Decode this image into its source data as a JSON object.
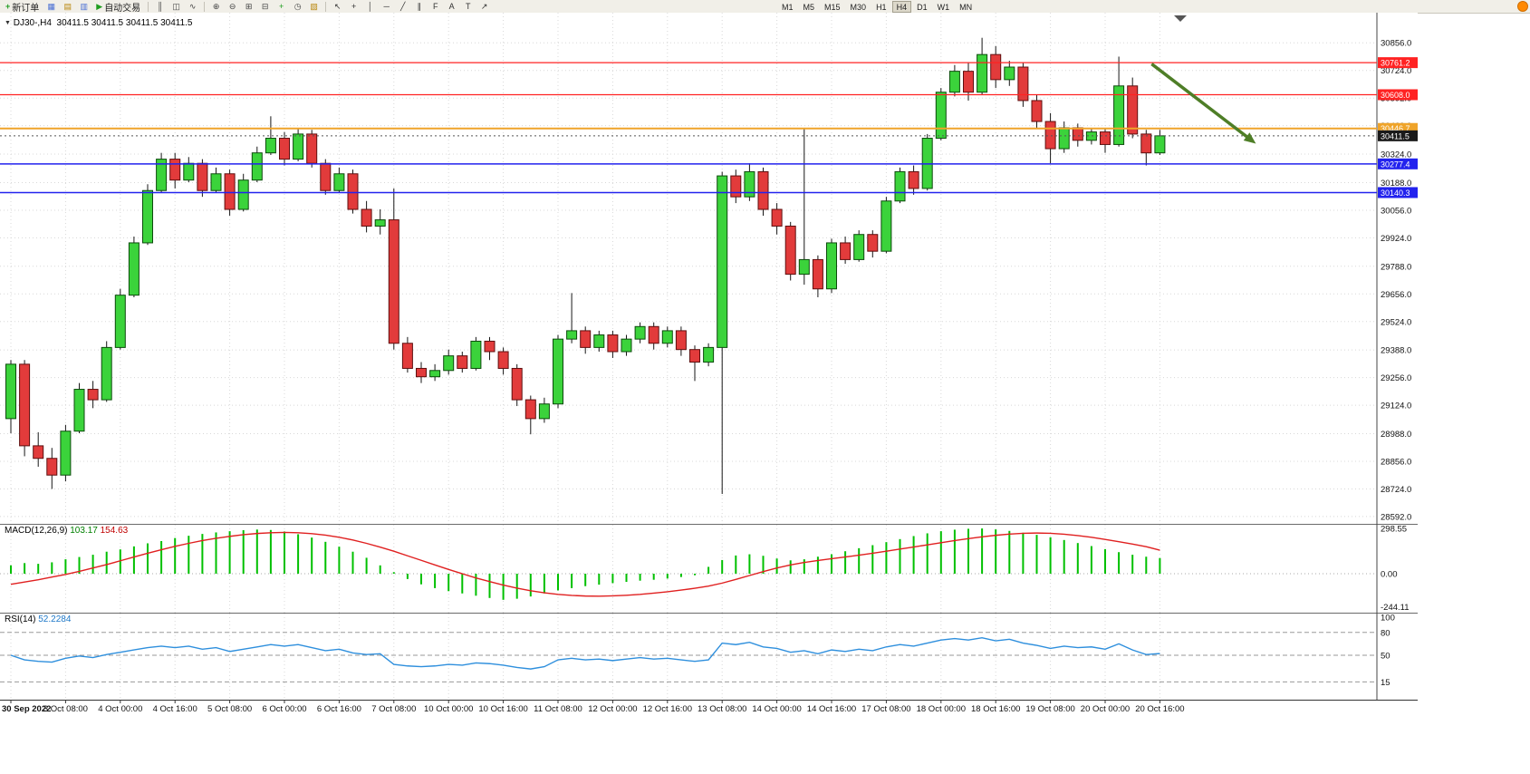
{
  "toolbar": {
    "new_order_label": "新订单",
    "auto_trading_label": "自动交易",
    "left_icons": [
      {
        "name": "charts-icon",
        "glyph": "▦",
        "color": "#4a6fd4"
      },
      {
        "name": "profiles-icon",
        "glyph": "▤",
        "color": "#b8860b"
      },
      {
        "name": "data-window-icon",
        "glyph": "▥",
        "color": "#4a6fd4"
      }
    ],
    "chart_type_icons": [
      {
        "name": "bar-chart-icon",
        "glyph": "║",
        "color": "#444444"
      },
      {
        "name": "candlestick-icon",
        "glyph": "◫",
        "color": "#444444"
      },
      {
        "name": "line-chart-icon",
        "glyph": "∿",
        "color": "#444444"
      }
    ],
    "view_icons": [
      {
        "name": "zoom-in-icon",
        "glyph": "⊕",
        "color": "#444444"
      },
      {
        "name": "zoom-out-icon",
        "glyph": "⊖",
        "color": "#444444"
      },
      {
        "name": "tile-windows-icon",
        "glyph": "⊞",
        "color": "#444444"
      },
      {
        "name": "auto-arrange-icon",
        "glyph": "⊟",
        "color": "#444444"
      },
      {
        "name": "indicators-icon",
        "glyph": "+",
        "color": "#1f9d1f"
      },
      {
        "name": "periods-icon",
        "glyph": "◷",
        "color": "#444444"
      },
      {
        "name": "templates-icon",
        "glyph": "▧",
        "color": "#b8860b"
      }
    ],
    "drawing_icons": [
      {
        "name": "cursor-icon",
        "glyph": "↖",
        "color": "#333333"
      },
      {
        "name": "crosshair-icon",
        "glyph": "+",
        "color": "#333333"
      },
      {
        "name": "vertical-line-icon",
        "glyph": "│",
        "color": "#333333"
      },
      {
        "name": "horizontal-line-icon",
        "glyph": "─",
        "color": "#333333"
      },
      {
        "name": "trendline-icon",
        "glyph": "╱",
        "color": "#333333"
      },
      {
        "name": "channel-icon",
        "glyph": "∥",
        "color": "#333333"
      },
      {
        "name": "fibonacci-icon",
        "glyph": "F",
        "color": "#333333"
      },
      {
        "name": "text-icon",
        "glyph": "A",
        "color": "#333333"
      },
      {
        "name": "label-icon",
        "glyph": "T",
        "color": "#333333"
      },
      {
        "name": "arrow-object-icon",
        "glyph": "↗",
        "color": "#333333"
      }
    ],
    "timeframes": [
      "M1",
      "M5",
      "M15",
      "M30",
      "H1",
      "H4",
      "D1",
      "W1",
      "MN"
    ],
    "active_timeframe": "H4"
  },
  "chart_data": {
    "type": "candlestick",
    "symbol_period": "DJ30-,H4",
    "quote_line": "30411.5 30411.5 30411.5 30411.5",
    "current_price": 30411.5,
    "price_label": {
      "text": "30411.5",
      "bg": "#1a1a1a"
    },
    "price_axis_labels": [
      "30856.0",
      "30724.0",
      "30592.0",
      "30460.0",
      "30324.0",
      "30188.0",
      "30056.0",
      "29924.0",
      "29788.0",
      "29656.0",
      "29524.0",
      "29388.0",
      "29256.0",
      "29124.0",
      "28988.0",
      "28856.0",
      "28724.0",
      "28592.0"
    ],
    "time_labels": [
      "30 Sep 2022",
      "3 Oct 08:00",
      "4 Oct 00:00",
      "4 Oct 16:00",
      "5 Oct 08:00",
      "6 Oct 00:00",
      "6 Oct 16:00",
      "7 Oct 08:00",
      "10 Oct 00:00",
      "10 Oct 16:00",
      "11 Oct 08:00",
      "12 Oct 00:00",
      "12 Oct 16:00",
      "13 Oct 08:00",
      "14 Oct 00:00",
      "14 Oct 16:00",
      "17 Oct 08:00",
      "18 Oct 00:00",
      "18 Oct 16:00",
      "19 Oct 08:00",
      "20 Oct 00:00",
      "20 Oct 16:00"
    ],
    "ohlc": [
      [
        29060,
        29340,
        28990,
        29320
      ],
      [
        29320,
        29340,
        28880,
        28930
      ],
      [
        28930,
        28995,
        28830,
        28870
      ],
      [
        28870,
        28920,
        28724,
        28790
      ],
      [
        28790,
        29030,
        28760,
        29000
      ],
      [
        29000,
        29230,
        28990,
        29200
      ],
      [
        29200,
        29240,
        29110,
        29150
      ],
      [
        29150,
        29430,
        29140,
        29400
      ],
      [
        29400,
        29680,
        29390,
        29650
      ],
      [
        29650,
        29930,
        29640,
        29900
      ],
      [
        29900,
        30180,
        29890,
        30150
      ],
      [
        30150,
        30330,
        30140,
        30300
      ],
      [
        30300,
        30330,
        30160,
        30200
      ],
      [
        30200,
        30310,
        30190,
        30280
      ],
      [
        30280,
        30300,
        30120,
        30150
      ],
      [
        30150,
        30260,
        30140,
        30230
      ],
      [
        30230,
        30250,
        30030,
        30060
      ],
      [
        30060,
        30230,
        30050,
        30200
      ],
      [
        30200,
        30360,
        30190,
        30330
      ],
      [
        30330,
        30505,
        30320,
        30400
      ],
      [
        30400,
        30430,
        30270,
        30300
      ],
      [
        30300,
        30445,
        30290,
        30420
      ],
      [
        30420,
        30440,
        30260,
        30280
      ],
      [
        30280,
        30300,
        30130,
        30150
      ],
      [
        30150,
        30260,
        30140,
        30230
      ],
      [
        30230,
        30250,
        30040,
        30060
      ],
      [
        30060,
        30100,
        29950,
        29980
      ],
      [
        29980,
        30060,
        29940,
        30010
      ],
      [
        30010,
        30160,
        29390,
        29420
      ],
      [
        29420,
        29450,
        29280,
        29300
      ],
      [
        29300,
        29330,
        29230,
        29260
      ],
      [
        29260,
        29320,
        29240,
        29290
      ],
      [
        29290,
        29390,
        29270,
        29360
      ],
      [
        29360,
        29380,
        29280,
        29300
      ],
      [
        29300,
        29450,
        29290,
        29430
      ],
      [
        29430,
        29450,
        29340,
        29380
      ],
      [
        29380,
        29400,
        29270,
        29300
      ],
      [
        29300,
        29320,
        29120,
        29150
      ],
      [
        29150,
        29170,
        28985,
        29060
      ],
      [
        29060,
        29160,
        29040,
        29130
      ],
      [
        29130,
        29460,
        29110,
        29440
      ],
      [
        29440,
        29660,
        29420,
        29480
      ],
      [
        29480,
        29500,
        29370,
        29400
      ],
      [
        29400,
        29480,
        29380,
        29460
      ],
      [
        29460,
        29480,
        29350,
        29380
      ],
      [
        29380,
        29460,
        29360,
        29440
      ],
      [
        29440,
        29520,
        29420,
        29500
      ],
      [
        29500,
        29520,
        29390,
        29420
      ],
      [
        29420,
        29500,
        29400,
        29480
      ],
      [
        29480,
        29500,
        29360,
        29390
      ],
      [
        29390,
        29410,
        29240,
        29330
      ],
      [
        29330,
        29420,
        29310,
        29400
      ],
      [
        29400,
        30240,
        28700,
        30220
      ],
      [
        30220,
        30250,
        30090,
        30120
      ],
      [
        30120,
        30280,
        30100,
        30240
      ],
      [
        30240,
        30260,
        30030,
        30060
      ],
      [
        30060,
        30090,
        29940,
        29980
      ],
      [
        29980,
        30000,
        29720,
        29750
      ],
      [
        29750,
        30450,
        29700,
        29820
      ],
      [
        29820,
        29840,
        29640,
        29680
      ],
      [
        29680,
        29920,
        29660,
        29900
      ],
      [
        29900,
        29930,
        29800,
        29820
      ],
      [
        29820,
        29960,
        29810,
        29940
      ],
      [
        29940,
        29960,
        29830,
        29860
      ],
      [
        29860,
        30120,
        29850,
        30100
      ],
      [
        30100,
        30260,
        30090,
        30240
      ],
      [
        30240,
        30270,
        30130,
        30160
      ],
      [
        30160,
        30420,
        30150,
        30400
      ],
      [
        30400,
        30640,
        30390,
        30620
      ],
      [
        30620,
        30750,
        30600,
        30720
      ],
      [
        30720,
        30760,
        30580,
        30620
      ],
      [
        30620,
        30880,
        30610,
        30800
      ],
      [
        30800,
        30840,
        30640,
        30680
      ],
      [
        30680,
        30770,
        30650,
        30740
      ],
      [
        30740,
        30760,
        30550,
        30580
      ],
      [
        30580,
        30610,
        30450,
        30480
      ],
      [
        30480,
        30520,
        30280,
        30350
      ],
      [
        30350,
        30480,
        30330,
        30450
      ],
      [
        30450,
        30470,
        30360,
        30390
      ],
      [
        30390,
        30450,
        30370,
        30430
      ],
      [
        30430,
        30450,
        30330,
        30370
      ],
      [
        30370,
        30790,
        30360,
        30650
      ],
      [
        30650,
        30690,
        30400,
        30420
      ],
      [
        30420,
        30440,
        30270,
        30330
      ],
      [
        30330,
        30440,
        30320,
        30411.5
      ]
    ],
    "objects": {
      "hlines": [
        {
          "price": 30761.2,
          "label": "30761.2",
          "color": "#ff2222",
          "width": 1.2
        },
        {
          "price": 30608.0,
          "label": "30608.0",
          "color": "#ff2222",
          "width": 1.2
        },
        {
          "price": 30446.7,
          "label": "30446.7",
          "color": "#efa42a",
          "width": 2
        },
        {
          "price": 30277.4,
          "label": "30277.4",
          "color": "#2222ee",
          "width": 1.5
        },
        {
          "price": 30140.3,
          "label": "30140.3",
          "color": "#2222ee",
          "width": 1.5
        }
      ],
      "arrow": {
        "from": [
          83.4,
          30755
        ],
        "to": [
          90.6,
          30395
        ],
        "color": "#4e7e27"
      }
    },
    "macd": {
      "title": "MACD(12,26,9)",
      "main_value": "103.17",
      "signal_value": "154.63",
      "scale_labels": [
        "298.55",
        "0.00",
        "-244.11"
      ],
      "hist_color": "#00c000",
      "signal_color": "#e02020",
      "histogram": [
        55,
        70,
        65,
        75,
        95,
        110,
        125,
        145,
        160,
        180,
        200,
        215,
        235,
        250,
        262,
        272,
        280,
        287,
        291,
        288,
        278,
        260,
        238,
        210,
        178,
        145,
        105,
        55,
        10,
        -35,
        -70,
        -95,
        -115,
        -130,
        -145,
        -160,
        -172,
        -165,
        -150,
        -130,
        -110,
        -95,
        -82,
        -72,
        -62,
        -54,
        -46,
        -40,
        -32,
        -22,
        -10,
        45,
        90,
        120,
        128,
        118,
        100,
        88,
        95,
        112,
        128,
        148,
        168,
        188,
        208,
        228,
        248,
        266,
        280,
        290,
        296,
        298,
        292,
        282,
        270,
        256,
        240,
        222,
        202,
        182,
        162,
        142,
        125,
        112,
        103
      ],
      "signal": [
        -70,
        -55,
        -40,
        -22,
        -5,
        15,
        38,
        60,
        85,
        110,
        135,
        158,
        180,
        200,
        218,
        233,
        246,
        257,
        265,
        270,
        272,
        270,
        264,
        254,
        240,
        222,
        200,
        175,
        148,
        118,
        88,
        58,
        28,
        0,
        -28,
        -52,
        -75,
        -95,
        -112,
        -126,
        -136,
        -143,
        -147,
        -148,
        -146,
        -142,
        -136,
        -128,
        -119,
        -108,
        -96,
        -82,
        -62,
        -38,
        -12,
        14,
        38,
        58,
        74,
        87,
        99,
        110,
        122,
        135,
        148,
        162,
        176,
        190,
        204,
        218,
        231,
        243,
        253,
        261,
        266,
        268,
        266,
        260,
        251,
        240,
        226,
        211,
        195,
        178,
        155
      ]
    },
    "rsi": {
      "title": "RSI(14)",
      "value": "52.2284",
      "scale_labels": [
        "100",
        "80",
        "50",
        "15"
      ],
      "levels": [
        80,
        50,
        15
      ],
      "line_color": "#2e8fdd",
      "values": [
        50,
        44,
        42,
        41,
        46,
        49,
        47,
        51,
        54,
        57,
        60,
        62,
        60,
        62,
        58,
        60,
        55,
        58,
        61,
        64,
        62,
        64,
        60,
        56,
        58,
        53,
        51,
        52,
        38,
        36,
        35,
        36,
        38,
        37,
        40,
        39,
        37,
        34,
        32,
        35,
        44,
        46,
        44,
        45,
        43,
        45,
        47,
        45,
        46,
        44,
        42,
        44,
        66,
        64,
        67,
        61,
        59,
        54,
        56,
        52,
        57,
        55,
        58,
        56,
        61,
        64,
        62,
        66,
        70,
        72,
        70,
        73,
        69,
        71,
        66,
        63,
        59,
        62,
        60,
        61,
        58,
        65,
        57,
        51,
        52.2284
      ]
    }
  }
}
